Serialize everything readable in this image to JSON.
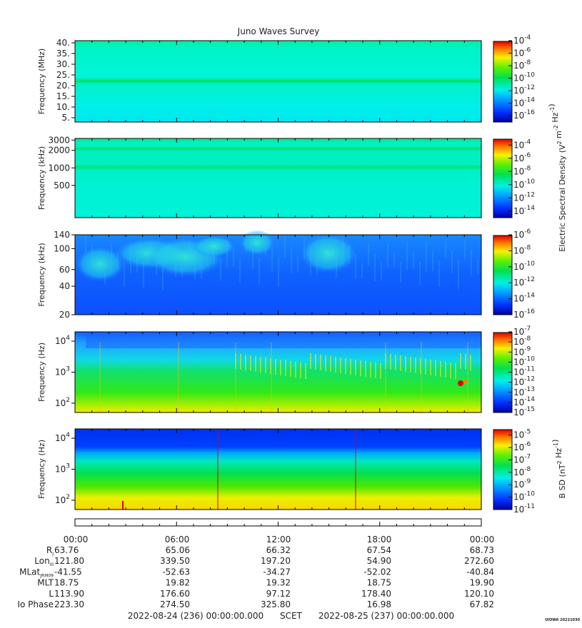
{
  "title": "Juno Waves Survey",
  "chart_data": [
    {
      "type": "heatmap",
      "ylabel": "Frequency (MHz)",
      "y_scale": "linear",
      "yticks": [
        "40.",
        "35.",
        "30.",
        "25.",
        "20.",
        "15.",
        "10.",
        "5."
      ],
      "ylim": [
        3,
        41
      ],
      "colorbar": {
        "label": "",
        "ticks": [
          "-4",
          "-6",
          "-8",
          "-10",
          "-12",
          "-14",
          "-16"
        ],
        "range_exp": [
          -17,
          -4
        ]
      },
      "features": {
        "background": "cyan",
        "band_at": "21 MHz"
      }
    },
    {
      "type": "heatmap",
      "ylabel": "Frequency (kHz)",
      "y_scale": "log",
      "yticks": [
        "3000",
        "2000",
        "1000",
        "500"
      ],
      "ylim": [
        140,
        3200
      ],
      "colorbar": {
        "label": "Electric Spectral Density (V^2 m^-2 Hz^-1)",
        "ticks": [
          "-4",
          "-6",
          "-8",
          "-10",
          "-12",
          "-14"
        ],
        "range_exp": [
          -15,
          -3
        ]
      },
      "features": {
        "background": "cyan",
        "bands_at": [
          "2000 kHz",
          "1000 kHz"
        ]
      }
    },
    {
      "type": "heatmap",
      "ylabel": "Frequency (kHz)",
      "y_scale": "log",
      "yticks": [
        "140",
        "100",
        "60",
        "40",
        "20"
      ],
      "ylim": [
        20,
        140
      ],
      "colorbar": {
        "label": "",
        "ticks": [
          "-6",
          "-8",
          "-10",
          "-12",
          "-14",
          "-16"
        ],
        "range_exp": [
          -16,
          -6
        ]
      },
      "features": {
        "background": "blue",
        "emission_patches": "cyan/green"
      }
    },
    {
      "type": "heatmap",
      "ylabel": "Frequency (Hz)",
      "y_scale": "log",
      "yticks": [
        "10^4",
        "10^3",
        "10^2"
      ],
      "ylim": [
        50,
        20000
      ],
      "colorbar": {
        "label": "",
        "ticks": [
          "-7",
          "-8",
          "-9",
          "-10",
          "-11",
          "-12",
          "-13",
          "-14",
          "-15"
        ],
        "range_exp": [
          -15,
          -7
        ]
      },
      "features": {
        "layers": "green/yellow low, cyan/blue high"
      }
    },
    {
      "type": "heatmap",
      "ylabel": "Frequency (Hz)",
      "y_scale": "log",
      "yticks": [
        "10^4",
        "10^3",
        "10^2"
      ],
      "ylim": [
        50,
        20000
      ],
      "colorbar": {
        "label": "B SD (nT^2 Hz^-1)",
        "ticks": [
          "-5",
          "-6",
          "-7",
          "-8",
          "-9",
          "-10",
          "-11"
        ],
        "range_exp": [
          -11,
          -4.5
        ]
      },
      "features": {
        "layers": "yellow low to blue high"
      }
    }
  ],
  "time_axis": {
    "ticks": [
      "00:00",
      "06:00",
      "12:00",
      "18:00",
      "00:00"
    ],
    "rows": [
      {
        "label": "R",
        "sub": "J",
        "values": [
          "63.76",
          "65.06",
          "66.32",
          "67.54",
          "68.73"
        ]
      },
      {
        "label": "Lon",
        "sub": "III",
        "values": [
          "121.80",
          "339.50",
          "197.20",
          "54.90",
          "272.60"
        ]
      },
      {
        "label": "MLat",
        "sub": "JRM09",
        "values": [
          "-41.55",
          "-52.63",
          "-34.27",
          "-52.02",
          "-40.84"
        ]
      },
      {
        "label": "MLT",
        "sub": "",
        "values": [
          "18.75",
          "19.82",
          "19.32",
          "18.75",
          "19.90"
        ]
      },
      {
        "label": "L",
        "sub": "",
        "values": [
          "113.90",
          "176.60",
          "97.12",
          "178.40",
          "120.10"
        ]
      },
      {
        "label": "Io Phase",
        "sub": "",
        "values": [
          "223.30",
          "274.50",
          "325.80",
          "16.98",
          "67.82"
        ]
      }
    ]
  },
  "footer": {
    "start": "2022-08-24 (236) 00:00:00.000",
    "scet": "SCET",
    "end": "2022-08-25 (237) 00:00:00.000"
  },
  "credit": "UIOWA 20221030",
  "colors": {
    "cyan": "#00f5e0",
    "green": "#00e052",
    "yellow": "#f7e600",
    "blue": "#1050ff",
    "dark_blue": "#0000b4",
    "red": "#e80000"
  }
}
